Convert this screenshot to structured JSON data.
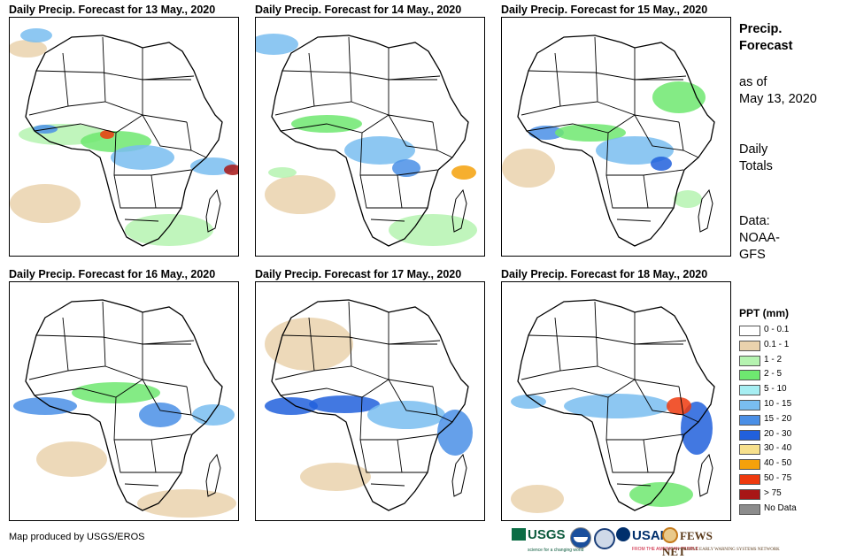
{
  "panels": [
    {
      "title": "Daily Precip. Forecast for 13 May., 2020"
    },
    {
      "title": "Daily Precip. Forecast for 14 May., 2020"
    },
    {
      "title": "Daily Precip. Forecast for 15 May., 2020"
    },
    {
      "title": "Daily Precip. Forecast for 16 May., 2020"
    },
    {
      "title": "Daily Precip. Forecast for 17 May., 2020"
    },
    {
      "title": "Daily Precip. Forecast for 18 May., 2020"
    }
  ],
  "sidebar": {
    "title_line1": "Precip.",
    "title_line2": "Forecast",
    "asof_line1": "as of",
    "asof_line2": "May 13, 2020",
    "daily_line1": "Daily",
    "daily_line2": "Totals",
    "source_line1": "Data:",
    "source_line2": "NOAA-",
    "source_line3": "GFS"
  },
  "legend": {
    "title": "PPT (mm)",
    "items": [
      {
        "label": "0 - 0.1",
        "color": "#ffffff"
      },
      {
        "label": "0.1 - 1",
        "color": "#ead2ad"
      },
      {
        "label": "1 - 2",
        "color": "#b5f3b0"
      },
      {
        "label": "2 - 5",
        "color": "#6ee870"
      },
      {
        "label": "5 - 10",
        "color": "#a6eef2"
      },
      {
        "label": "10 - 15",
        "color": "#79bdf0"
      },
      {
        "label": "15 - 20",
        "color": "#4a8fe6"
      },
      {
        "label": "20 - 30",
        "color": "#2160dc"
      },
      {
        "label": "30 - 40",
        "color": "#f7e08c"
      },
      {
        "label": "40 - 50",
        "color": "#f5a10a"
      },
      {
        "label": "50 - 75",
        "color": "#ee3a0e"
      },
      {
        "label": "> 75",
        "color": "#a81616"
      },
      {
        "label": "No Data",
        "color": "#8c8c8c"
      }
    ]
  },
  "footer": {
    "credit": "Map produced by USGS/EROS",
    "logos": {
      "usgs": "USGS",
      "usgs_tagline": "science for a changing world",
      "usaid": "USAID",
      "usaid_tagline": "FROM THE AMERICAN PEOPLE",
      "fews": "FEWS NET",
      "fews_tagline": "FAMINE EARLY WARNING SYSTEMS NETWORK"
    }
  }
}
